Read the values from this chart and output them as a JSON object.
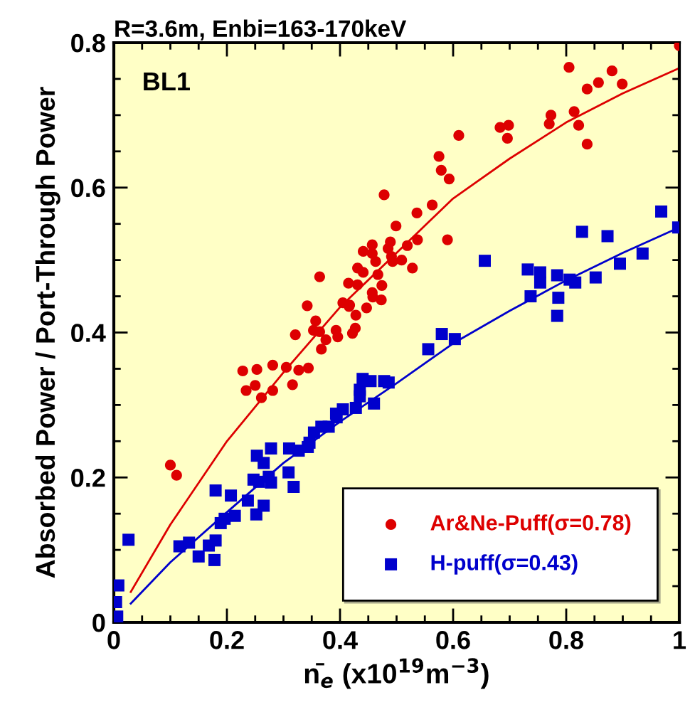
{
  "chart_data": {
    "type": "scatter",
    "title": "R=3.6m, Enbi=163-170keV",
    "xlabel": "n̄$_{e}$ (x10$^{19}$m$^{−3}$)",
    "ylabel": "Absorbed Power / Port-Through Power",
    "annotations": [
      "BL1"
    ],
    "xlim": [
      0,
      1
    ],
    "xticks": [
      0,
      0.2,
      0.4,
      0.6,
      0.8,
      1
    ],
    "ylim": [
      0,
      0.8
    ],
    "yticks": [
      0,
      0.2,
      0.4,
      0.6,
      0.8
    ],
    "legend": "bottom right",
    "grid": false,
    "series": [
      {
        "name": "Ar&Ne-Puff(σ=0.78)",
        "color": "#dd0000",
        "marker": "circle",
        "x": [
          0.1,
          0.111,
          0.228,
          0.234,
          0.25,
          0.253,
          0.261,
          0.281,
          0.281,
          0.305,
          0.316,
          0.327,
          0.344,
          0.321,
          0.357,
          0.353,
          0.364,
          0.375,
          0.367,
          0.393,
          0.396,
          0.428,
          0.427,
          0.422,
          0.447,
          0.416,
          0.342,
          0.478,
          0.499,
          0.457,
          0.441,
          0.457,
          0.489,
          0.485,
          0.491,
          0.493,
          0.463,
          0.431,
          0.441,
          0.467,
          0.415,
          0.431,
          0.474,
          0.364,
          0.405,
          0.417,
          0.457,
          0.458,
          0.473,
          1.0,
          0.805,
          0.881,
          0.857,
          0.899,
          0.837,
          0.61,
          0.683,
          0.698,
          0.696,
          0.773,
          0.77,
          0.814,
          0.822,
          0.837,
          0.575,
          0.579,
          0.593,
          0.563,
          0.536,
          0.537,
          0.519,
          0.59,
          0.509,
          0.528
        ],
        "values": [
          0.217,
          0.203,
          0.347,
          0.32,
          0.327,
          0.349,
          0.31,
          0.355,
          0.32,
          0.352,
          0.328,
          0.348,
          0.351,
          0.397,
          0.416,
          0.403,
          0.401,
          0.39,
          0.377,
          0.403,
          0.394,
          0.424,
          0.406,
          0.399,
          0.434,
          0.436,
          0.437,
          0.59,
          0.547,
          0.521,
          0.512,
          0.509,
          0.525,
          0.516,
          0.505,
          0.498,
          0.498,
          0.489,
          0.483,
          0.48,
          0.468,
          0.466,
          0.465,
          0.477,
          0.441,
          0.438,
          0.455,
          0.449,
          0.445,
          0.796,
          0.766,
          0.761,
          0.745,
          0.743,
          0.736,
          0.672,
          0.683,
          0.686,
          0.668,
          0.7,
          0.688,
          0.705,
          0.686,
          0.66,
          0.643,
          0.624,
          0.612,
          0.576,
          0.565,
          0.528,
          0.52,
          0.528,
          0.5,
          0.489
        ]
      },
      {
        "name": "H-puff(σ=0.43)",
        "color": "#0000cc",
        "marker": "square",
        "x": [
          0.008,
          0.004,
          0.006,
          0.026,
          0.116,
          0.133,
          0.15,
          0.168,
          0.18,
          0.178,
          0.18,
          0.189,
          0.196,
          0.214,
          0.207,
          0.237,
          0.252,
          0.265,
          0.247,
          0.257,
          0.274,
          0.278,
          0.253,
          0.265,
          0.278,
          0.309,
          0.318,
          0.31,
          0.327,
          0.343,
          0.346,
          0.354,
          0.367,
          0.38,
          0.393,
          0.394,
          0.405,
          0.428,
          0.435,
          0.435,
          0.44,
          0.454,
          0.46,
          0.478,
          0.486,
          0.556,
          0.58,
          0.603,
          0.656,
          0.732,
          0.754,
          0.754,
          0.784,
          0.737,
          0.786,
          0.784,
          0.806,
          0.816,
          0.828,
          0.873,
          0.852,
          0.895,
          0.935,
          0.968,
          0.998
        ],
        "values": [
          0.051,
          0.028,
          0.008,
          0.114,
          0.105,
          0.11,
          0.091,
          0.106,
          0.113,
          0.086,
          0.182,
          0.137,
          0.143,
          0.147,
          0.175,
          0.168,
          0.149,
          0.161,
          0.197,
          0.194,
          0.201,
          0.193,
          0.23,
          0.22,
          0.24,
          0.207,
          0.187,
          0.24,
          0.237,
          0.242,
          0.248,
          0.262,
          0.27,
          0.27,
          0.288,
          0.283,
          0.294,
          0.296,
          0.312,
          0.321,
          0.336,
          0.333,
          0.302,
          0.333,
          0.331,
          0.377,
          0.398,
          0.391,
          0.499,
          0.487,
          0.483,
          0.469,
          0.479,
          0.45,
          0.448,
          0.423,
          0.473,
          0.469,
          0.539,
          0.533,
          0.476,
          0.495,
          0.509,
          0.567,
          0.545
        ]
      },
      {
        "type": "line",
        "color": "#dd0000",
        "x": [
          0.03,
          0.1,
          0.2,
          0.3,
          0.4,
          0.5,
          0.6,
          0.7,
          0.8,
          0.9,
          1
        ],
        "values": [
          0.042,
          0.135,
          0.25,
          0.345,
          0.435,
          0.51,
          0.585,
          0.64,
          0.69,
          0.73,
          0.765
        ]
      },
      {
        "type": "line",
        "color": "#0000cc",
        "x": [
          0.03,
          0.1,
          0.2,
          0.3,
          0.4,
          0.5,
          0.6,
          0.7,
          0.8,
          0.9,
          1
        ],
        "values": [
          0.026,
          0.083,
          0.152,
          0.22,
          0.277,
          0.33,
          0.385,
          0.43,
          0.472,
          0.51,
          0.545
        ]
      }
    ]
  }
}
